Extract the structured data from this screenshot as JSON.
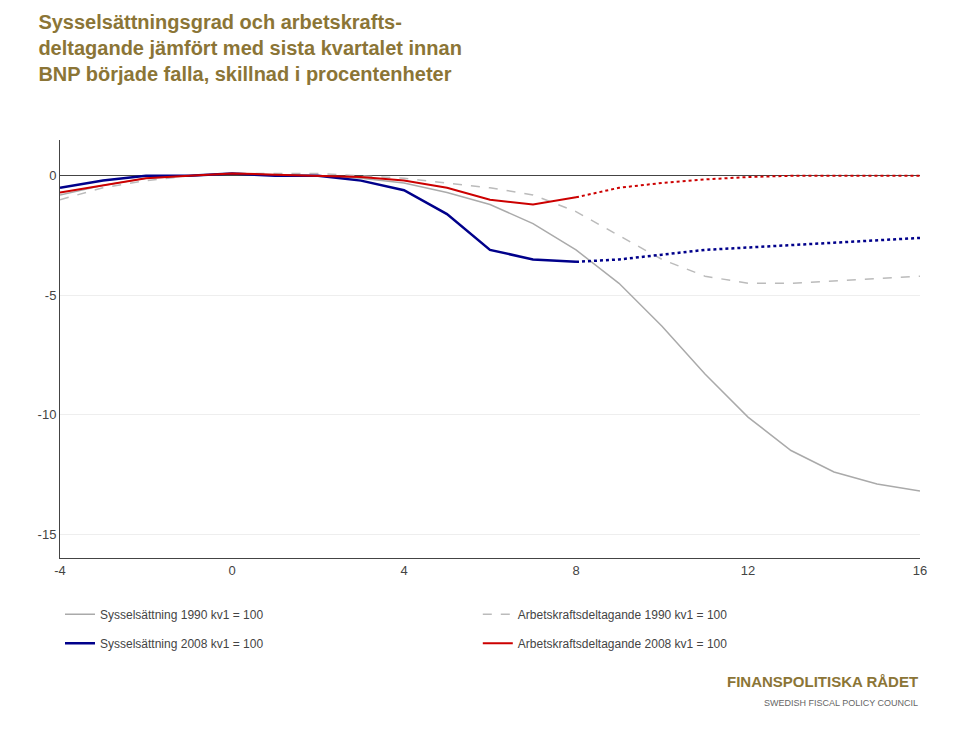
{
  "chart_data": {
    "type": "line",
    "title": "Sysselsättningsgrad och arbetskrafts-\ndeltagande jämfört med sista kvartalet innan\nBNP började falla, skillnad i procentenheter",
    "x": [
      -4,
      -3,
      -2,
      -1,
      0,
      1,
      2,
      3,
      4,
      5,
      6,
      7,
      8,
      9,
      10,
      11,
      12,
      13,
      14,
      15,
      16
    ],
    "series": [
      {
        "name": "Sysselsättning 1990 kv1 = 100",
        "color": "#aaaaaa",
        "line_style": "solid",
        "values": [
          -0.8,
          -0.4,
          -0.1,
          0.0,
          0.1,
          0.05,
          0.0,
          -0.1,
          -0.3,
          -0.7,
          -1.2,
          -2.0,
          -3.1,
          -4.5,
          -6.3,
          -8.3,
          -10.1,
          -11.5,
          -12.4,
          -12.9,
          -13.2
        ]
      },
      {
        "name": "Arbetskraftsdeltagande 1990 kv1 = 100",
        "color": "#bbbbbb",
        "line_style": "dashed",
        "values": [
          -1.0,
          -0.5,
          -0.2,
          0.0,
          0.1,
          0.1,
          0.1,
          0.0,
          -0.1,
          -0.3,
          -0.5,
          -0.8,
          -1.5,
          -2.5,
          -3.5,
          -4.2,
          -4.5,
          -4.5,
          -4.4,
          -4.3,
          -4.2
        ]
      },
      {
        "name": "Sysselsättning 2008 kv1 = 100",
        "color": "#00008B",
        "line_style": "solid",
        "values": [
          -0.5,
          -0.2,
          0.0,
          0.0,
          0.1,
          0.0,
          0.0,
          -0.2,
          -0.6,
          -1.6,
          -3.1,
          -3.5,
          -3.6,
          null,
          null,
          null,
          null,
          null,
          null,
          null,
          null
        ]
      },
      {
        "name": "Sysselsättning 2008 kv1 = 100",
        "color": "#00008B",
        "line_style": "dotted",
        "values": [
          null,
          null,
          null,
          null,
          null,
          null,
          null,
          null,
          null,
          null,
          null,
          null,
          -3.6,
          -3.5,
          -3.3,
          -3.1,
          -3.0,
          -2.9,
          -2.8,
          -2.7,
          -2.6
        ]
      },
      {
        "name": "Arbetskraftsdeltagande 2008 kv1 = 100",
        "color": "#CC0000",
        "line_style": "solid",
        "values": [
          -0.7,
          -0.4,
          -0.1,
          0.0,
          0.1,
          0.05,
          0.0,
          -0.05,
          -0.2,
          -0.5,
          -1.0,
          -1.2,
          -0.9,
          null,
          null,
          null,
          null,
          null,
          null,
          null,
          null
        ]
      },
      {
        "name": "Arbetskraftsdeltagande 2008 kv1 = 100",
        "color": "#CC0000",
        "line_style": "dotted",
        "values": [
          null,
          null,
          null,
          null,
          null,
          null,
          null,
          null,
          null,
          null,
          null,
          null,
          -0.9,
          -0.5,
          -0.3,
          -0.15,
          -0.05,
          0.0,
          0.0,
          0.0,
          0.0
        ]
      }
    ],
    "xlim": [
      -4,
      16
    ],
    "ylim": [
      -16,
      1.5
    ],
    "xticks": [
      -4,
      0,
      4,
      8,
      12,
      16
    ],
    "yticks": [
      0,
      -5,
      -10,
      -15
    ],
    "grid": true,
    "legend": "bottom",
    "annotations": [
      "FINANSPOLITISKA RÅDET",
      "SWEDISH FISCAL POLICY COUNCIL"
    ]
  }
}
